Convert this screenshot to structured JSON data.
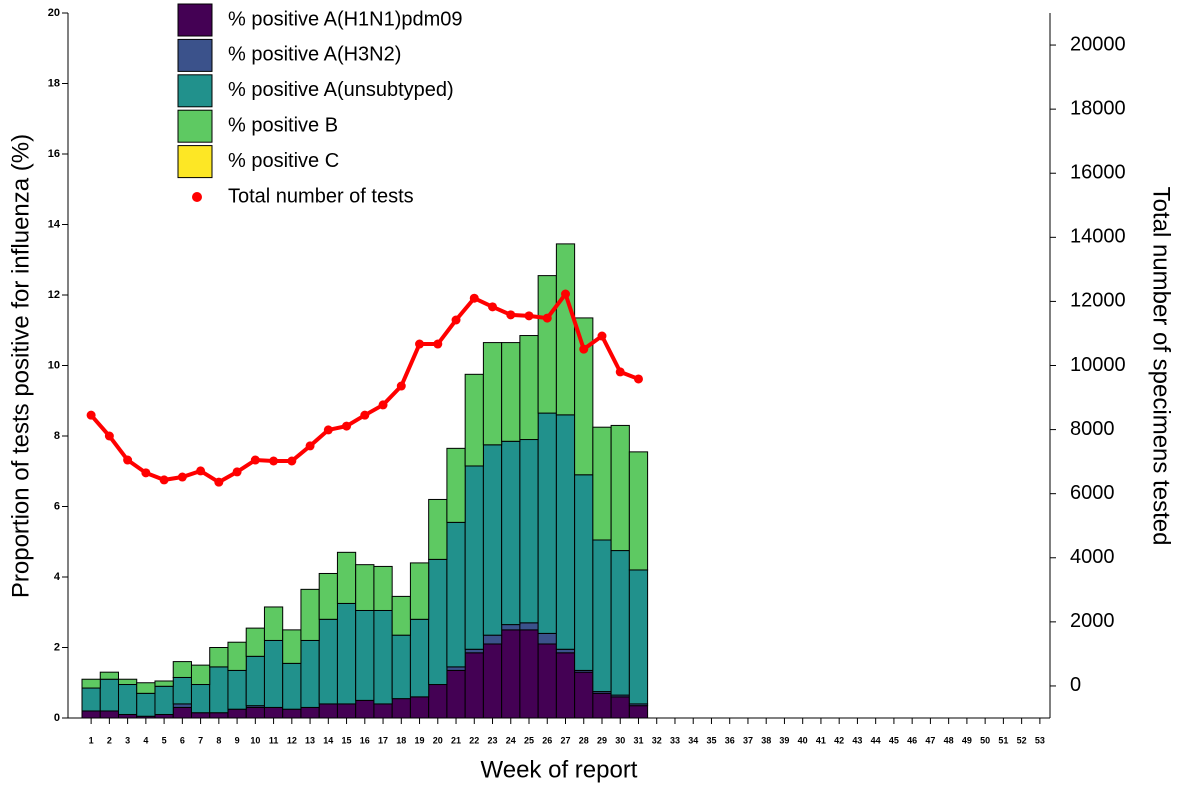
{
  "chart_data": {
    "type": "bar",
    "stacked": true,
    "y_label": "Proportion of tests positive for influenza (%)",
    "y2_label": "Total number of specimens tested",
    "x_label": "Week of report",
    "categories": [
      "1",
      "2",
      "3",
      "4",
      "5",
      "6",
      "7",
      "8",
      "9",
      "10",
      "11",
      "12",
      "13",
      "14",
      "15",
      "16",
      "17",
      "18",
      "19",
      "20",
      "21",
      "22",
      "23",
      "24",
      "25",
      "26",
      "27",
      "28",
      "29",
      "30",
      "31",
      "32",
      "33",
      "34",
      "35",
      "36",
      "37",
      "38",
      "39",
      "40",
      "41",
      "42",
      "43",
      "44",
      "45",
      "46",
      "47",
      "48",
      "49",
      "50",
      "51",
      "52",
      "53"
    ],
    "ylim": [
      0,
      20
    ],
    "yticks": [
      0,
      2,
      4,
      6,
      8,
      10,
      12,
      14,
      16,
      18,
      20
    ],
    "y2lim": [
      -1000,
      21000
    ],
    "y2ticks": [
      0,
      2000,
      4000,
      6000,
      8000,
      10000,
      12000,
      14000,
      16000,
      18000,
      20000
    ],
    "series": [
      {
        "name": "% positive A(H1N1)pdm09",
        "type": "bar",
        "color": "#440154",
        "values": [
          0.2,
          0.2,
          0.1,
          0.05,
          0.1,
          0.3,
          0.15,
          0.15,
          0.25,
          0.3,
          0.3,
          0.25,
          0.3,
          0.4,
          0.4,
          0.5,
          0.4,
          0.55,
          0.6,
          0.95,
          1.35,
          1.85,
          2.1,
          2.5,
          2.5,
          2.1,
          1.85,
          1.3,
          0.7,
          0.6,
          0.35,
          null,
          null,
          null,
          null,
          null,
          null,
          null,
          null,
          null,
          null,
          null,
          null,
          null,
          null,
          null,
          null,
          null,
          null,
          null,
          null,
          null,
          null
        ]
      },
      {
        "name": "% positive A(H3N2)",
        "type": "bar",
        "color": "#3b528b",
        "values": [
          0,
          0,
          0,
          0,
          0,
          0.1,
          0,
          0,
          0,
          0.05,
          0,
          0,
          0,
          0,
          0,
          0,
          0,
          0,
          0,
          0,
          0.1,
          0.1,
          0.25,
          0.15,
          0.2,
          0.3,
          0.1,
          0.05,
          0.05,
          0.05,
          0.05,
          null,
          null,
          null,
          null,
          null,
          null,
          null,
          null,
          null,
          null,
          null,
          null,
          null,
          null,
          null,
          null,
          null,
          null,
          null,
          null,
          null,
          null
        ]
      },
      {
        "name": "% positive A(unsubtyped)",
        "type": "bar",
        "color": "#21918c",
        "values": [
          0.65,
          0.9,
          0.85,
          0.65,
          0.8,
          0.75,
          0.8,
          1.3,
          1.1,
          1.4,
          1.9,
          1.3,
          1.9,
          2.4,
          2.85,
          2.55,
          2.65,
          1.8,
          2.2,
          3.55,
          4.1,
          5.2,
          5.4,
          5.2,
          5.2,
          6.25,
          6.65,
          5.55,
          4.3,
          4.1,
          3.8,
          null,
          null,
          null,
          null,
          null,
          null,
          null,
          null,
          null,
          null,
          null,
          null,
          null,
          null,
          null,
          null,
          null,
          null,
          null,
          null,
          null,
          null
        ]
      },
      {
        "name": "% positive B",
        "type": "bar",
        "color": "#5ec962",
        "values": [
          0.25,
          0.2,
          0.15,
          0.3,
          0.15,
          0.45,
          0.55,
          0.55,
          0.8,
          0.8,
          0.95,
          0.95,
          1.45,
          1.3,
          1.45,
          1.3,
          1.25,
          1.1,
          1.6,
          1.7,
          2.1,
          2.6,
          2.9,
          2.8,
          2.95,
          3.9,
          4.85,
          4.45,
          3.2,
          3.55,
          3.35,
          null,
          null,
          null,
          null,
          null,
          null,
          null,
          null,
          null,
          null,
          null,
          null,
          null,
          null,
          null,
          null,
          null,
          null,
          null,
          null,
          null,
          null
        ]
      },
      {
        "name": "% positive C",
        "type": "bar",
        "color": "#fde725",
        "values": [
          0,
          0,
          0,
          0,
          0,
          0,
          0,
          0,
          0,
          0,
          0,
          0,
          0,
          0,
          0,
          0,
          0,
          0,
          0,
          0,
          0,
          0,
          0,
          0,
          0,
          0,
          0,
          0,
          0,
          0,
          0,
          null,
          null,
          null,
          null,
          null,
          null,
          null,
          null,
          null,
          null,
          null,
          null,
          null,
          null,
          null,
          null,
          null,
          null,
          null,
          null,
          null,
          null
        ]
      },
      {
        "name": "Total number of tests",
        "type": "line",
        "axis": "y2",
        "color": "#ff0000",
        "values": [
          8450,
          7800,
          7050,
          6650,
          6430,
          6520,
          6710,
          6360,
          6680,
          7050,
          7020,
          7020,
          7490,
          7990,
          8110,
          8450,
          8770,
          9360,
          10670,
          10670,
          11420,
          12100,
          11830,
          11580,
          11550,
          11480,
          12230,
          10510,
          10920,
          9800,
          9580,
          null,
          null,
          null,
          null,
          null,
          null,
          null,
          null,
          null,
          null,
          null,
          null,
          null,
          null,
          null,
          null,
          null,
          null,
          null,
          null,
          null,
          null
        ]
      }
    ]
  }
}
